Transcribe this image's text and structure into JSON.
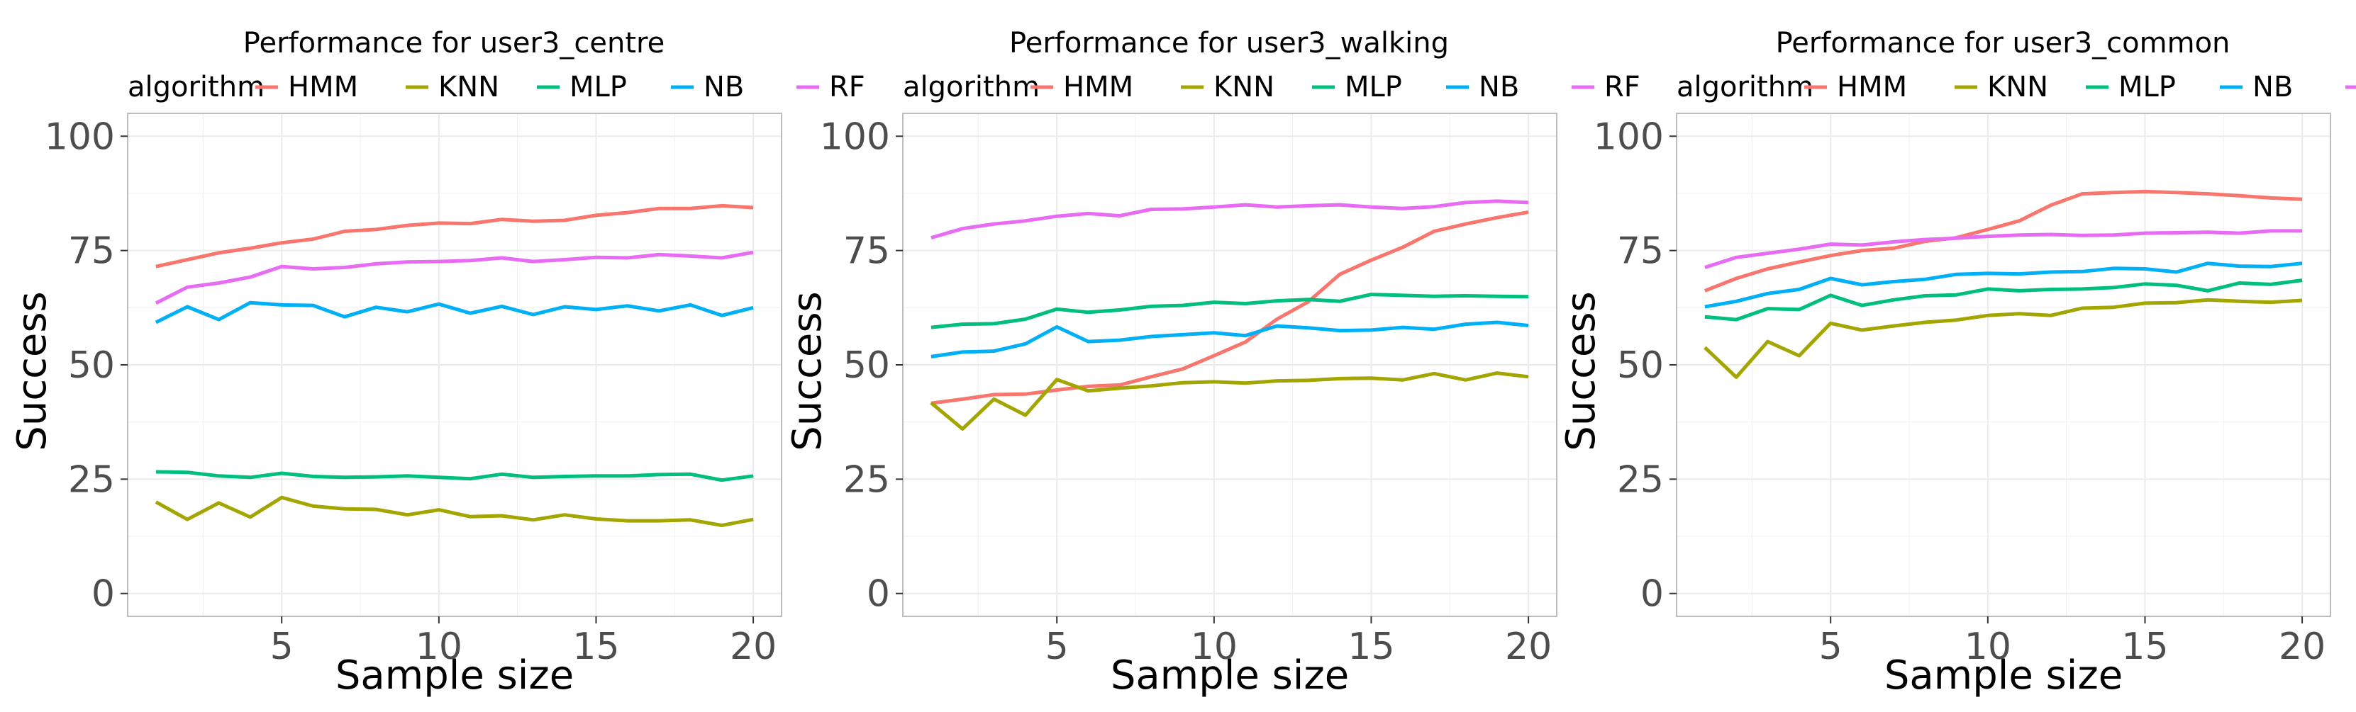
{
  "legend_title": "algorithm",
  "algorithm_colors": {
    "HMM": "#F8766D",
    "KNN": "#A3A500",
    "MLP": "#00BF7D",
    "NB": "#00B0F6",
    "RF": "#E76BF3"
  },
  "chart_data": [
    {
      "type": "line",
      "title": "Performance for user3_centre",
      "xlabel": "Sample size",
      "ylabel": "Success",
      "xlim": [
        0.1,
        20.9
      ],
      "ylim": [
        -5,
        105
      ],
      "xticks": [
        5,
        10,
        15,
        20
      ],
      "yticks": [
        0,
        25,
        50,
        75,
        100
      ],
      "legend": [
        "HMM",
        "KNN",
        "MLP",
        "NB",
        "RF"
      ],
      "x": [
        1,
        2,
        3,
        4,
        5,
        6,
        7,
        8,
        9,
        10,
        11,
        12,
        13,
        14,
        15,
        16,
        17,
        18,
        19,
        20
      ],
      "series": [
        {
          "name": "HMM",
          "values": [
            71.5,
            73,
            74.5,
            75.5,
            76.7,
            77.5,
            79.2,
            79.6,
            80.5,
            81,
            80.9,
            81.8,
            81.4,
            81.6,
            82.7,
            83.3,
            84.2,
            84.2,
            84.8,
            84.4
          ]
        },
        {
          "name": "KNN",
          "values": [
            20,
            16.2,
            19.8,
            16.7,
            21,
            19.1,
            18.5,
            18.4,
            17.2,
            18.3,
            16.8,
            17,
            16.1,
            17.2,
            16.3,
            15.9,
            15.9,
            16.1,
            14.9,
            16.2
          ]
        },
        {
          "name": "MLP",
          "values": [
            26.6,
            26.5,
            25.7,
            25.4,
            26.3,
            25.6,
            25.4,
            25.5,
            25.7,
            25.4,
            25.1,
            26.1,
            25.4,
            25.6,
            25.7,
            25.7,
            26,
            26.1,
            24.8,
            25.7
          ]
        },
        {
          "name": "NB",
          "values": [
            59.3,
            62.7,
            59.9,
            63.6,
            63.1,
            63,
            60.5,
            62.6,
            61.6,
            63.3,
            61.3,
            62.8,
            61,
            62.7,
            62.1,
            62.9,
            61.8,
            63.1,
            60.8,
            62.5
          ]
        },
        {
          "name": "RF",
          "values": [
            63.5,
            67,
            67.9,
            69.2,
            71.5,
            71,
            71.3,
            72.1,
            72.5,
            72.6,
            72.8,
            73.4,
            72.6,
            73,
            73.5,
            73.4,
            74.1,
            73.8,
            73.4,
            74.6
          ]
        }
      ]
    },
    {
      "type": "line",
      "title": "Performance for user3_walking",
      "xlabel": "Sample size",
      "ylabel": "Success",
      "xlim": [
        0.1,
        20.9
      ],
      "ylim": [
        -5,
        105
      ],
      "xticks": [
        5,
        10,
        15,
        20
      ],
      "yticks": [
        0,
        25,
        50,
        75,
        100
      ],
      "legend": [
        "HMM",
        "KNN",
        "MLP",
        "NB",
        "RF"
      ],
      "x": [
        1,
        2,
        3,
        4,
        5,
        6,
        7,
        8,
        9,
        10,
        11,
        12,
        13,
        14,
        15,
        16,
        17,
        18,
        19,
        20
      ],
      "series": [
        {
          "name": "HMM",
          "values": [
            41.6,
            42.5,
            43.5,
            43.6,
            44.5,
            45.3,
            45.6,
            47.4,
            49.1,
            52,
            55,
            60,
            63.8,
            69.8,
            72.9,
            75.7,
            79.2,
            80.8,
            82.2,
            83.4
          ]
        },
        {
          "name": "KNN",
          "values": [
            41.7,
            36,
            42.5,
            39,
            46.8,
            44.3,
            44.9,
            45.4,
            46.1,
            46.3,
            46,
            46.5,
            46.6,
            47,
            47.1,
            46.7,
            48.1,
            46.7,
            48.2,
            47.4
          ]
        },
        {
          "name": "MLP",
          "values": [
            58.2,
            58.9,
            59,
            60,
            62.2,
            61.5,
            62,
            62.8,
            63,
            63.7,
            63.4,
            64,
            64.3,
            63.9,
            65.4,
            65.2,
            65,
            65.1,
            65,
            64.9
          ]
        },
        {
          "name": "NB",
          "values": [
            51.8,
            52.8,
            53,
            54.6,
            58.3,
            55.1,
            55.4,
            56.2,
            56.6,
            57,
            56.4,
            58.5,
            58.1,
            57.5,
            57.6,
            58.2,
            57.8,
            58.9,
            59.3,
            58.6
          ]
        },
        {
          "name": "RF",
          "values": [
            77.8,
            79.8,
            80.8,
            81.5,
            82.5,
            83.1,
            82.6,
            84,
            84.1,
            84.5,
            85,
            84.5,
            84.8,
            85,
            84.5,
            84.2,
            84.6,
            85.5,
            85.8,
            85.5
          ]
        }
      ]
    },
    {
      "type": "line",
      "title": "Performance for user3_common",
      "xlabel": "Sample size",
      "ylabel": "Success",
      "xlim": [
        0.1,
        20.9
      ],
      "ylim": [
        -5,
        105
      ],
      "xticks": [
        5,
        10,
        15,
        20
      ],
      "yticks": [
        0,
        25,
        50,
        75,
        100
      ],
      "legend": [
        "HMM",
        "KNN",
        "MLP",
        "NB",
        "RF"
      ],
      "x": [
        1,
        2,
        3,
        4,
        5,
        6,
        7,
        8,
        9,
        10,
        11,
        12,
        13,
        14,
        15,
        16,
        17,
        18,
        19,
        20
      ],
      "series": [
        {
          "name": "HMM",
          "values": [
            66.2,
            68.9,
            71,
            72.5,
            73.9,
            75,
            75.5,
            77,
            77.8,
            79.6,
            81.5,
            84.9,
            87.4,
            87.7,
            87.9,
            87.7,
            87.4,
            87,
            86.5,
            86.2
          ]
        },
        {
          "name": "KNN",
          "values": [
            53.8,
            47.3,
            55.1,
            52,
            59.1,
            57.6,
            58.5,
            59.3,
            59.8,
            60.8,
            61.2,
            60.8,
            62.4,
            62.6,
            63.5,
            63.6,
            64.2,
            63.9,
            63.7,
            64.1
          ]
        },
        {
          "name": "MLP",
          "values": [
            60.5,
            59.9,
            62.3,
            62.1,
            65.2,
            63,
            64.2,
            65.1,
            65.3,
            66.6,
            66.2,
            66.5,
            66.6,
            66.9,
            67.7,
            67.4,
            66.2,
            67.9,
            67.6,
            68.5
          ]
        },
        {
          "name": "NB",
          "values": [
            62.7,
            63.9,
            65.6,
            66.5,
            68.9,
            67.5,
            68.2,
            68.7,
            69.8,
            70,
            69.9,
            70.3,
            70.4,
            71.1,
            71,
            70.3,
            72.2,
            71.6,
            71.5,
            72.2
          ]
        },
        {
          "name": "RF",
          "values": [
            71.3,
            73.5,
            74.4,
            75.3,
            76.4,
            76.2,
            76.9,
            77.4,
            77.7,
            78.1,
            78.4,
            78.5,
            78.3,
            78.4,
            78.8,
            78.9,
            79,
            78.8,
            79.3,
            79.3
          ]
        }
      ]
    }
  ]
}
